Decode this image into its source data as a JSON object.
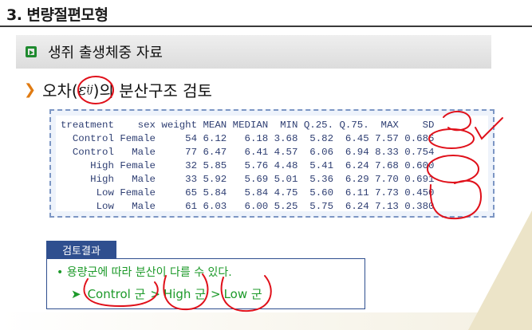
{
  "header": {
    "title": "3. 변량절편모형"
  },
  "section": {
    "title": "생쥐 출생체중 자료"
  },
  "subhead": {
    "before": "오차(",
    "epsilon": "ε",
    "subscript": "ij",
    "after": ")의 분산구조 검토"
  },
  "table": {
    "header": "treatment    sex weight MEAN MEDIAN  MIN Q.25. Q.75.  MAX    SD",
    "rows": [
      "  Control Female     54 6.12   6.18 3.68  5.82  6.45 7.57 0.685",
      "  Control   Male     77 6.47   6.41 4.57  6.06  6.94 8.33 0.754",
      "     High Female     32 5.85   5.76 4.48  5.41  6.24 7.68 0.600",
      "     High   Male     33 5.92   5.69 5.01  5.36  6.29 7.70 0.691",
      "      Low Female     65 5.84   5.84 4.75  5.60  6.11 7.73 0.450",
      "      Low   Male     61 6.03   6.00 5.25  5.75  6.24 7.13 0.380"
    ]
  },
  "result": {
    "tag": "검토결과",
    "bullet": "• 용량군에 따라 분산이 다를 수 있다.",
    "rank_marker": "➤",
    "rank": [
      "Control 군",
      "High 군",
      "Low 군"
    ],
    "sep": ">"
  },
  "colors": {
    "annotation": "#e0101a",
    "accent_green": "#1d9a2a",
    "navy": "#2f4f8f"
  }
}
